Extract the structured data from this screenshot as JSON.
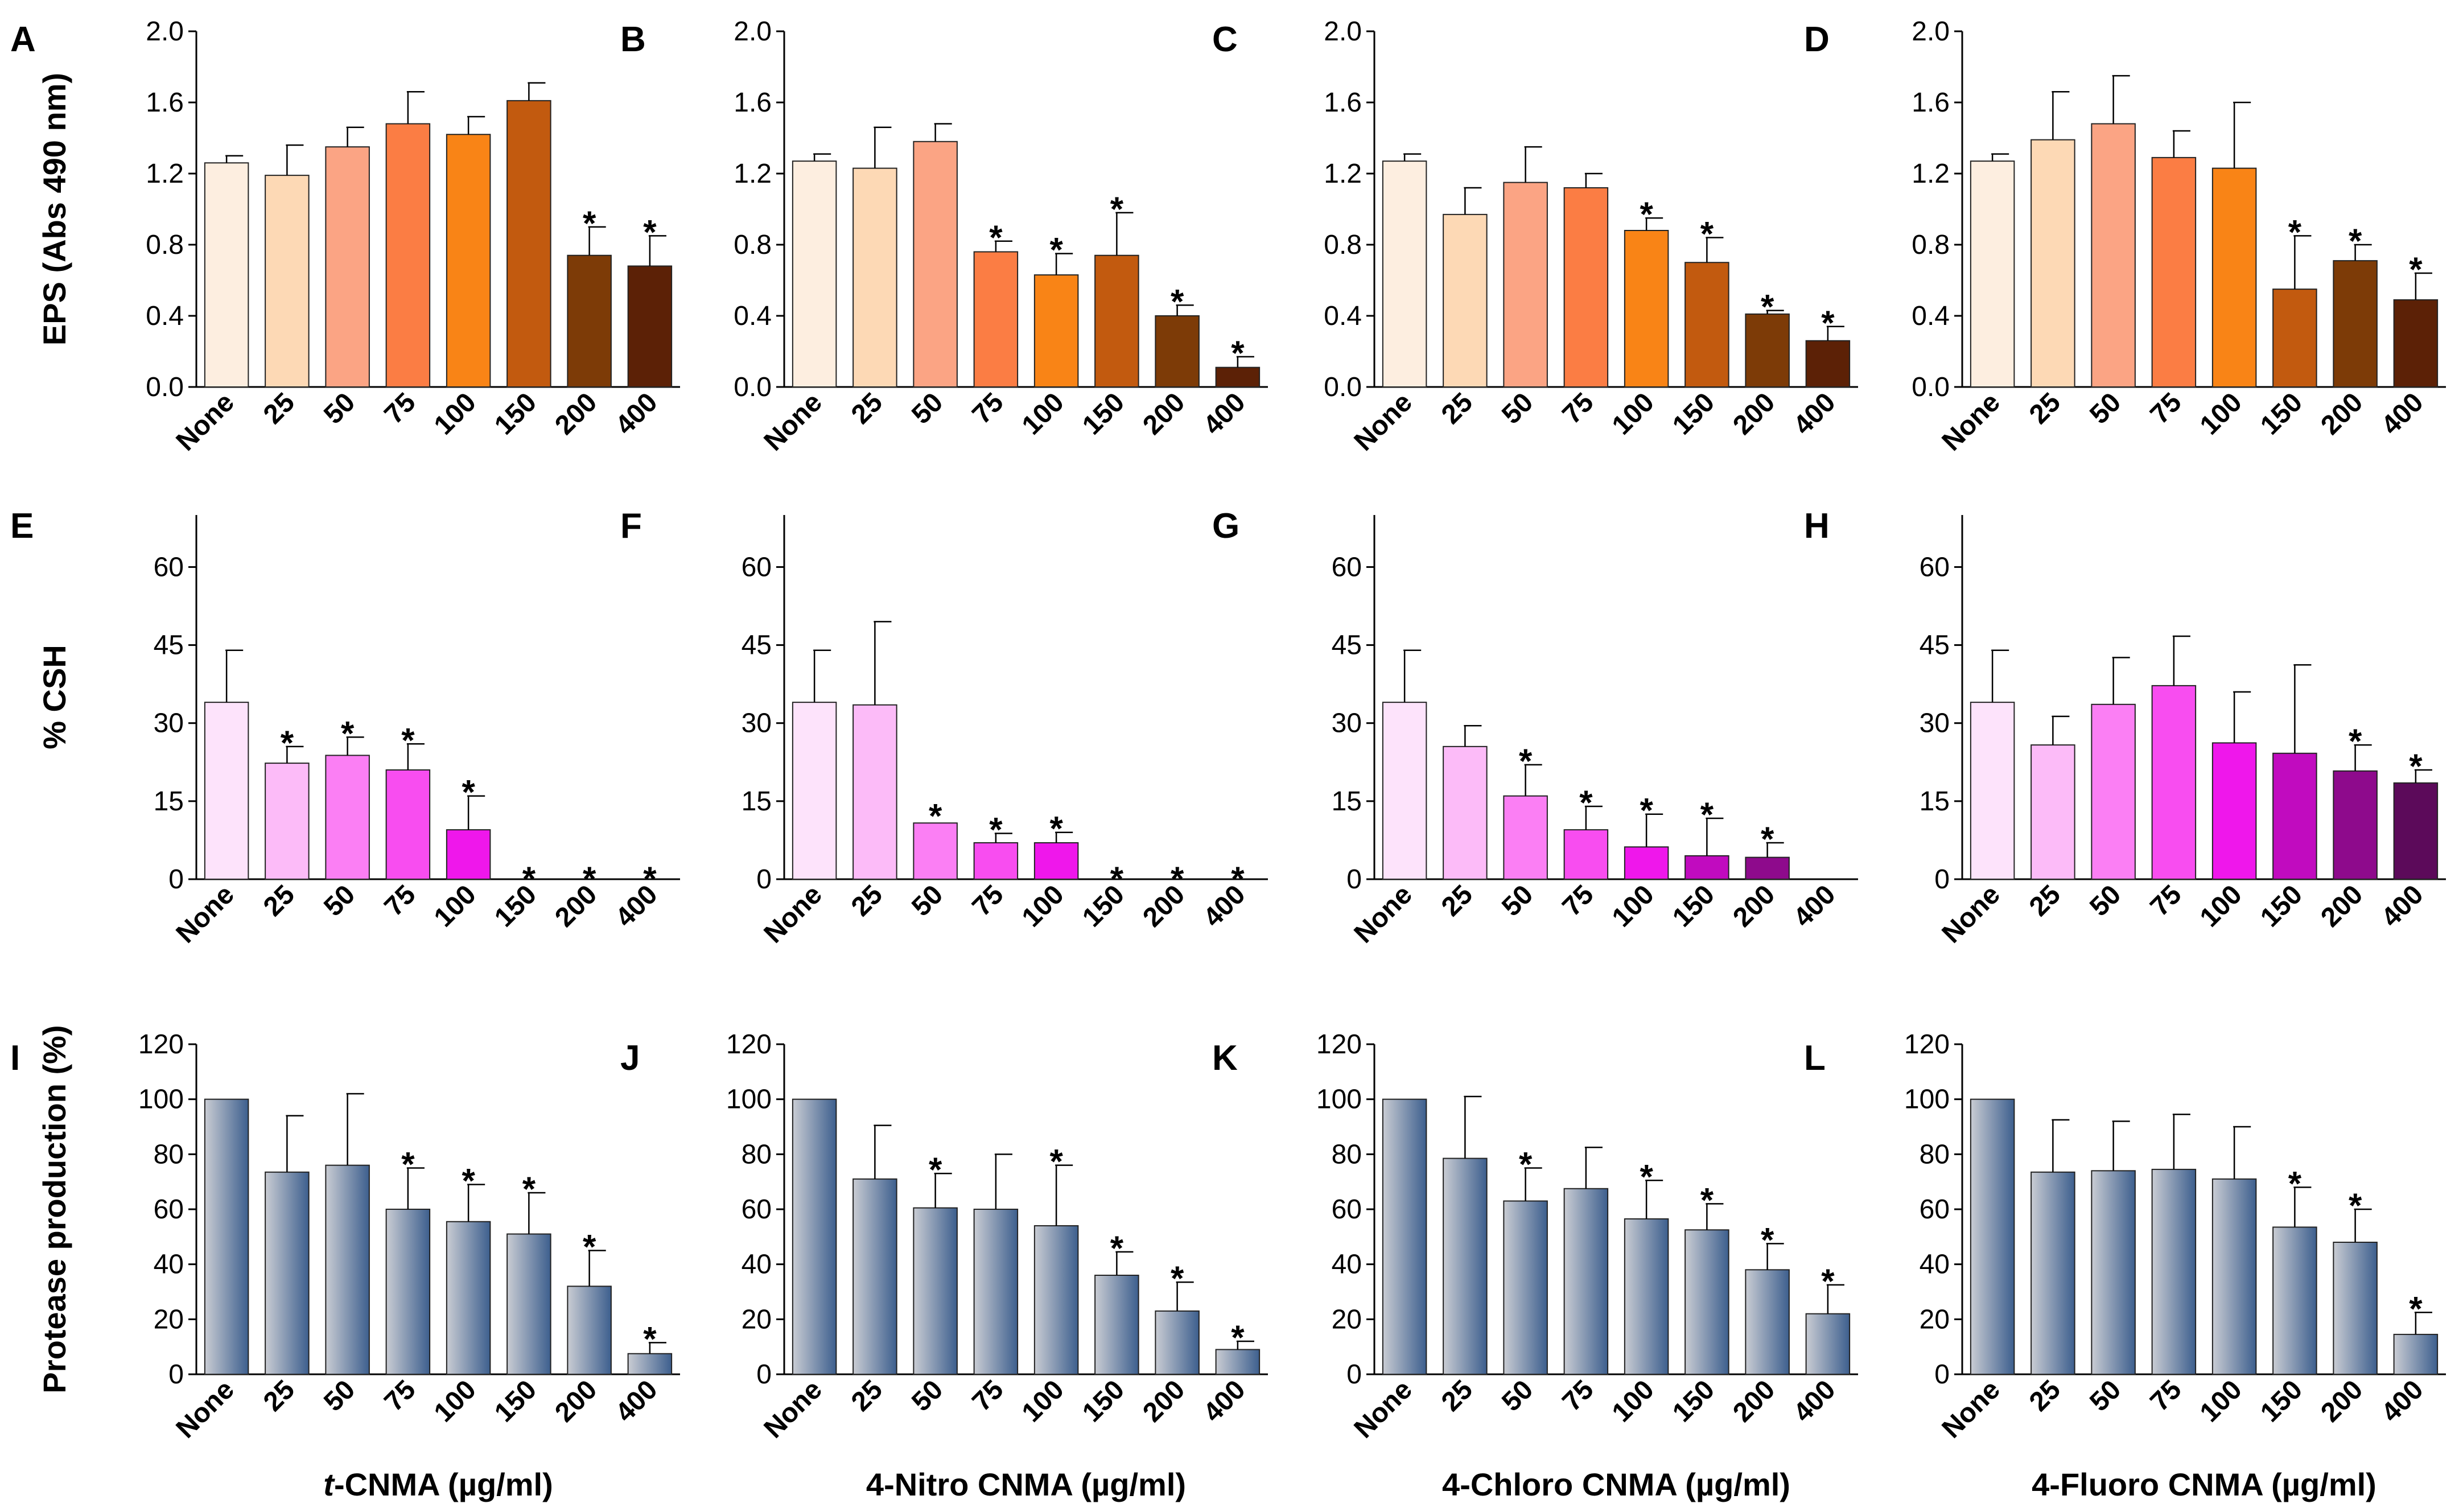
{
  "figure": {
    "rows": [
      {
        "id": "eps",
        "ylabel": "EPS (Abs 490 nm)",
        "ylim": [
          0,
          2.0
        ],
        "yticks": [
          "0.0",
          "0.4",
          "0.8",
          "1.2",
          "1.6",
          "2.0"
        ],
        "bar_style": "solid",
        "panels": [
          {
            "label": "A",
            "colors": [
              "#fdeee0",
              "#fdd9b5",
              "#fba484",
              "#fb7d44",
              "#f98416",
              "#c25a0f",
              "#7d3b07",
              "#5c2106"
            ]
          },
          {
            "label": "B",
            "colors": [
              "#fdeee0",
              "#fdd9b5",
              "#fba484",
              "#fb7d44",
              "#f98416",
              "#c25a0f",
              "#7d3b07",
              "#5c2106"
            ]
          },
          {
            "label": "C",
            "colors": [
              "#fdeee0",
              "#fdd9b5",
              "#fba484",
              "#fb7d44",
              "#f98416",
              "#c25a0f",
              "#7d3b07",
              "#5c2106"
            ]
          },
          {
            "label": "D",
            "colors": [
              "#fdeee0",
              "#fdd9b5",
              "#fba484",
              "#fb7d44",
              "#f98416",
              "#c25a0f",
              "#7d3b07",
              "#5c2106"
            ]
          }
        ]
      },
      {
        "id": "csh",
        "ylabel": "% CSH",
        "ylim": [
          0,
          70
        ],
        "yticks": [
          "0",
          "15",
          "30",
          "45",
          "60"
        ],
        "bar_style": "solid",
        "panels": [
          {
            "label": "E",
            "colors": [
              "#fde3fb",
              "#fcbbf8",
              "#fb7ff4",
              "#f84df0",
              "#ef17eb",
              "#c10bbf",
              "#8e0a8c",
              "#5c0a5a"
            ]
          },
          {
            "label": "F",
            "colors": [
              "#fde3fb",
              "#fcbbf8",
              "#fb7ff4",
              "#f84df0",
              "#ef17eb",
              "#c10bbf",
              "#8e0a8c",
              "#5c0a5a"
            ]
          },
          {
            "label": "G",
            "colors": [
              "#fde3fb",
              "#fcbbf8",
              "#fb7ff4",
              "#f84df0",
              "#ef17eb",
              "#c10bbf",
              "#8e0a8c",
              "#5c0a5a"
            ]
          },
          {
            "label": "H",
            "colors": [
              "#fde3fb",
              "#fcbbf8",
              "#fb7ff4",
              "#f84df0",
              "#ef17eb",
              "#c10bbf",
              "#8e0a8c",
              "#5c0a5a"
            ]
          }
        ]
      },
      {
        "id": "protease",
        "ylabel": "Protease production (%)",
        "ylim": [
          0,
          120
        ],
        "yticks": [
          "0",
          "20",
          "40",
          "60",
          "80",
          "100",
          "120"
        ],
        "bar_style": "gradient",
        "gradient": [
          "#c9ccd3",
          "#3d5f8e"
        ],
        "panels": [
          {
            "label": "I",
            "xtitle": "t-CNMA (µg/ml)",
            "xtitle_italic": "t",
            "xtitle_rest": "-CNMA (µg/ml)"
          },
          {
            "label": "J",
            "xtitle": "4-Nitro CNMA (µg/ml)"
          },
          {
            "label": "K",
            "xtitle": "4-Chloro CNMA (µg/ml)"
          },
          {
            "label": "L",
            "xtitle": "4-Fluoro CNMA (µg/ml)"
          }
        ]
      }
    ]
  },
  "chart_data": [
    {
      "type": "bar",
      "panel": "A",
      "title": "",
      "xlabel": "",
      "ylabel": "EPS (Abs 490 nm)",
      "ylim": [
        0,
        2.0
      ],
      "categories": [
        "None",
        "25",
        "50",
        "75",
        "100",
        "150",
        "200",
        "400"
      ],
      "values": [
        1.26,
        1.19,
        1.35,
        1.48,
        1.42,
        1.61,
        0.74,
        0.68
      ],
      "errors": [
        0.04,
        0.17,
        0.11,
        0.18,
        0.1,
        0.1,
        0.16,
        0.17
      ],
      "significant": [
        false,
        false,
        false,
        false,
        false,
        false,
        true,
        true
      ]
    },
    {
      "type": "bar",
      "panel": "B",
      "title": "",
      "xlabel": "",
      "ylabel": "",
      "ylim": [
        0,
        2.0
      ],
      "categories": [
        "None",
        "25",
        "50",
        "75",
        "100",
        "150",
        "200",
        "400"
      ],
      "values": [
        1.27,
        1.23,
        1.38,
        0.76,
        0.63,
        0.74,
        0.4,
        0.11
      ],
      "errors": [
        0.04,
        0.23,
        0.1,
        0.06,
        0.12,
        0.24,
        0.06,
        0.06
      ],
      "significant": [
        false,
        false,
        false,
        true,
        true,
        true,
        true,
        true
      ]
    },
    {
      "type": "bar",
      "panel": "C",
      "title": "",
      "xlabel": "",
      "ylabel": "",
      "ylim": [
        0,
        2.0
      ],
      "categories": [
        "None",
        "25",
        "50",
        "75",
        "100",
        "150",
        "200",
        "400"
      ],
      "values": [
        1.27,
        0.97,
        1.15,
        1.12,
        0.88,
        0.7,
        0.41,
        0.26
      ],
      "errors": [
        0.04,
        0.15,
        0.2,
        0.08,
        0.07,
        0.14,
        0.02,
        0.08
      ],
      "significant": [
        false,
        false,
        false,
        false,
        true,
        true,
        true,
        true
      ]
    },
    {
      "type": "bar",
      "panel": "D",
      "title": "",
      "xlabel": "",
      "ylabel": "",
      "ylim": [
        0,
        2.0
      ],
      "categories": [
        "None",
        "25",
        "50",
        "75",
        "100",
        "150",
        "200",
        "400"
      ],
      "values": [
        1.27,
        1.39,
        1.48,
        1.29,
        1.23,
        0.55,
        0.71,
        0.49
      ],
      "errors": [
        0.04,
        0.27,
        0.27,
        0.15,
        0.37,
        0.3,
        0.09,
        0.15
      ],
      "significant": [
        false,
        false,
        false,
        false,
        false,
        true,
        true,
        true
      ]
    },
    {
      "type": "bar",
      "panel": "E",
      "title": "",
      "xlabel": "",
      "ylabel": "% CSH",
      "ylim": [
        0,
        70
      ],
      "categories": [
        "None",
        "25",
        "50",
        "75",
        "100",
        "150",
        "200",
        "400"
      ],
      "values": [
        34.0,
        22.3,
        23.8,
        21.0,
        9.5,
        0,
        0,
        0
      ],
      "errors": [
        10.0,
        3.2,
        3.5,
        5.0,
        6.5,
        0,
        0,
        0
      ],
      "significant": [
        false,
        true,
        true,
        true,
        true,
        true,
        true,
        true
      ]
    },
    {
      "type": "bar",
      "panel": "F",
      "title": "",
      "xlabel": "",
      "ylabel": "",
      "ylim": [
        0,
        70
      ],
      "categories": [
        "None",
        "25",
        "50",
        "75",
        "100",
        "150",
        "200",
        "400"
      ],
      "values": [
        34.0,
        33.5,
        10.8,
        7.0,
        7.0,
        0,
        0,
        0
      ],
      "errors": [
        10.0,
        16.0,
        0,
        1.8,
        2.0,
        0,
        0,
        0
      ],
      "significant": [
        false,
        false,
        true,
        true,
        true,
        true,
        true,
        true
      ]
    },
    {
      "type": "bar",
      "panel": "G",
      "title": "",
      "xlabel": "",
      "ylabel": "",
      "ylim": [
        0,
        70
      ],
      "categories": [
        "None",
        "25",
        "50",
        "75",
        "100",
        "150",
        "200",
        "400"
      ],
      "values": [
        34.0,
        25.5,
        16.0,
        9.5,
        6.2,
        4.5,
        4.2,
        0
      ],
      "errors": [
        10.0,
        4.0,
        6.0,
        4.5,
        6.3,
        7.2,
        2.8,
        0
      ],
      "significant": [
        false,
        false,
        true,
        true,
        true,
        true,
        true,
        false
      ]
    },
    {
      "type": "bar",
      "panel": "H",
      "title": "",
      "xlabel": "",
      "ylabel": "",
      "ylim": [
        0,
        70
      ],
      "categories": [
        "None",
        "25",
        "50",
        "75",
        "100",
        "150",
        "200",
        "400"
      ],
      "values": [
        34.0,
        25.8,
        33.6,
        37.2,
        26.2,
        24.2,
        20.8,
        18.5
      ],
      "errors": [
        10.0,
        5.5,
        9.0,
        9.5,
        9.8,
        17.0,
        5.0,
        2.5
      ],
      "significant": [
        false,
        false,
        false,
        false,
        false,
        false,
        true,
        true
      ]
    },
    {
      "type": "bar",
      "panel": "I",
      "title": "",
      "xlabel": "t-CNMA (µg/ml)",
      "ylabel": "Protease production (%)",
      "ylim": [
        0,
        120
      ],
      "categories": [
        "None",
        "25",
        "50",
        "75",
        "100",
        "150",
        "200",
        "400"
      ],
      "values": [
        100,
        73.5,
        76,
        60,
        55.5,
        51,
        32,
        7.5
      ],
      "errors": [
        0,
        20.5,
        26,
        15,
        13.5,
        15,
        13,
        4
      ],
      "significant": [
        false,
        false,
        false,
        true,
        true,
        true,
        true,
        true
      ]
    },
    {
      "type": "bar",
      "panel": "J",
      "title": "",
      "xlabel": "4-Nitro CNMA (µg/ml)",
      "ylabel": "",
      "ylim": [
        0,
        120
      ],
      "categories": [
        "None",
        "25",
        "50",
        "75",
        "100",
        "150",
        "200",
        "400"
      ],
      "values": [
        100,
        71,
        60.5,
        60,
        54,
        36,
        23,
        9
      ],
      "errors": [
        0,
        19.5,
        12.5,
        20,
        22,
        8.5,
        10.5,
        3
      ],
      "significant": [
        false,
        false,
        true,
        false,
        true,
        true,
        true,
        true
      ]
    },
    {
      "type": "bar",
      "panel": "K",
      "title": "",
      "xlabel": "4-Chloro CNMA (µg/ml)",
      "ylabel": "",
      "ylim": [
        0,
        120
      ],
      "categories": [
        "None",
        "25",
        "50",
        "75",
        "100",
        "150",
        "200",
        "400"
      ],
      "values": [
        100,
        78.5,
        63,
        67.5,
        56.5,
        52.5,
        38,
        22
      ],
      "errors": [
        0,
        22.5,
        12,
        15,
        14,
        9.5,
        9.5,
        10.5
      ],
      "significant": [
        false,
        false,
        true,
        false,
        true,
        true,
        true,
        true
      ]
    },
    {
      "type": "bar",
      "panel": "L",
      "title": "",
      "xlabel": "4-Fluoro CNMA (µg/ml)",
      "ylabel": "",
      "ylim": [
        0,
        120
      ],
      "categories": [
        "None",
        "25",
        "50",
        "75",
        "100",
        "150",
        "200",
        "400"
      ],
      "values": [
        100,
        73.5,
        74,
        74.5,
        71,
        53.5,
        48,
        14.5
      ],
      "errors": [
        0,
        19,
        18,
        20,
        19,
        14.5,
        12,
        8
      ],
      "significant": [
        false,
        false,
        false,
        false,
        false,
        true,
        true,
        true
      ]
    }
  ]
}
